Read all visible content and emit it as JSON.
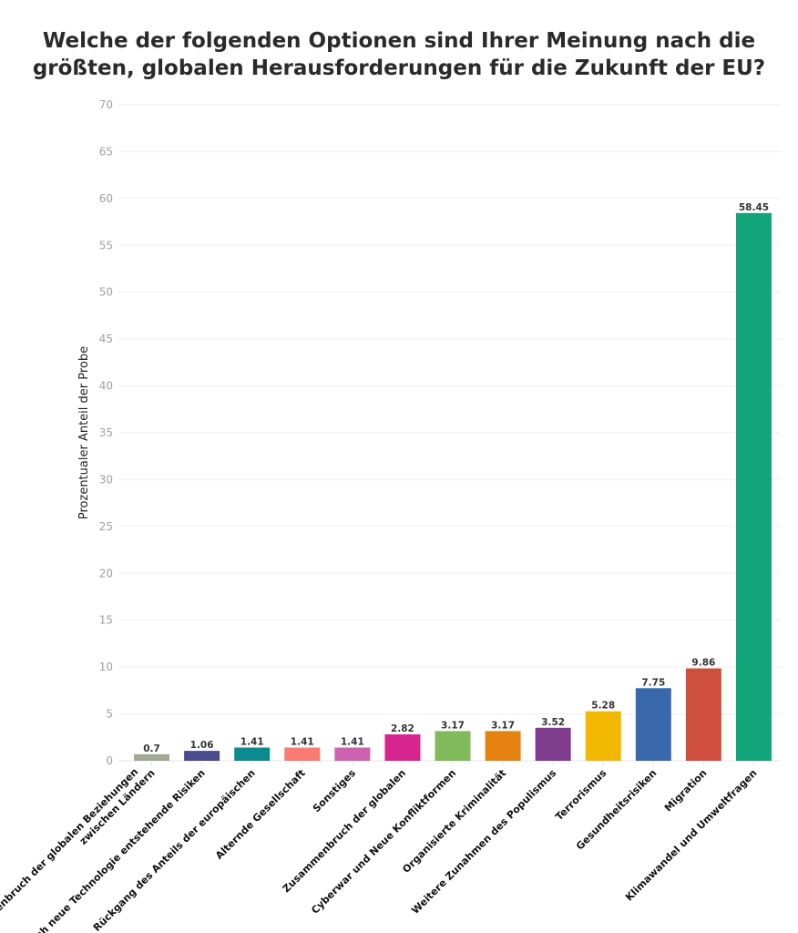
{
  "chart_data": {
    "type": "bar",
    "title_lines": [
      "Welche der folgenden Optionen sind Ihrer Meinung nach die",
      "größten, globalen Herausforderungen für die Zukunft der EU?"
    ],
    "xlabel": "",
    "ylabel": "Prozentualer Anteil der Probe",
    "ylim": [
      0,
      70
    ],
    "yticks": [
      0,
      5,
      10,
      15,
      20,
      25,
      30,
      35,
      40,
      45,
      50,
      55,
      60,
      65,
      70
    ],
    "grid": true,
    "categories": [
      [
        "Zusammenbruch der globalen Beziehungen",
        "zwischen Ländern"
      ],
      [
        "Durch neue Technologie entstehende Risiken"
      ],
      [
        "Rückgang des Anteils der europäischen"
      ],
      [
        "Alternde Gesellschaft"
      ],
      [
        "Sonstiges"
      ],
      [
        "Zusammenbruch der globalen"
      ],
      [
        "Cyberwar und Neue Konfliktformen"
      ],
      [
        "Organisierte Kriminalität"
      ],
      [
        "Weitere Zunahmen des Populismus"
      ],
      [
        "Terrorismus"
      ],
      [
        "Gesundheitsrisiken"
      ],
      [
        "Migration"
      ],
      [
        "Klimawandel und Umweltfragen"
      ]
    ],
    "values": [
      0.7,
      1.06,
      1.41,
      1.41,
      1.41,
      2.82,
      3.17,
      3.17,
      3.52,
      5.28,
      7.75,
      9.86,
      58.45
    ],
    "colors": [
      "#a3a996",
      "#4a4a8e",
      "#0b8a8f",
      "#f97b72",
      "#cc61b0",
      "#d6258f",
      "#80ba5a",
      "#e68310",
      "#7f3c8d",
      "#f2b701",
      "#3969ac",
      "#cf4f3e",
      "#11a579"
    ]
  }
}
